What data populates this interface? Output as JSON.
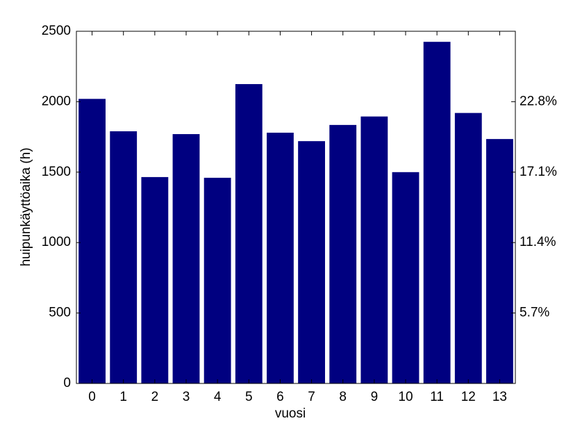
{
  "chart_data": {
    "type": "bar",
    "x_label": "vuosi",
    "y_label": "huipunkäyttöaika (h)",
    "categories": [
      "0",
      "1",
      "2",
      "3",
      "4",
      "5",
      "6",
      "7",
      "8",
      "9",
      "10",
      "11",
      "12",
      "13"
    ],
    "values": [
      2020,
      1790,
      1465,
      1770,
      1460,
      2125,
      1780,
      1720,
      1835,
      1895,
      1500,
      2425,
      1920,
      1735
    ],
    "color": "#000080",
    "ylim": [
      0,
      2500
    ],
    "yticks": [
      0,
      500,
      1000,
      1500,
      2000,
      2500
    ],
    "y2lim": [
      0,
      28.5
    ],
    "y2ticks": [
      {
        "value": 5.7,
        "label": "5.7%"
      },
      {
        "value": 11.4,
        "label": "11.4%"
      },
      {
        "value": 17.1,
        "label": "17.1%"
      },
      {
        "value": 22.8,
        "label": "22.8%"
      }
    ],
    "grid": false
  }
}
